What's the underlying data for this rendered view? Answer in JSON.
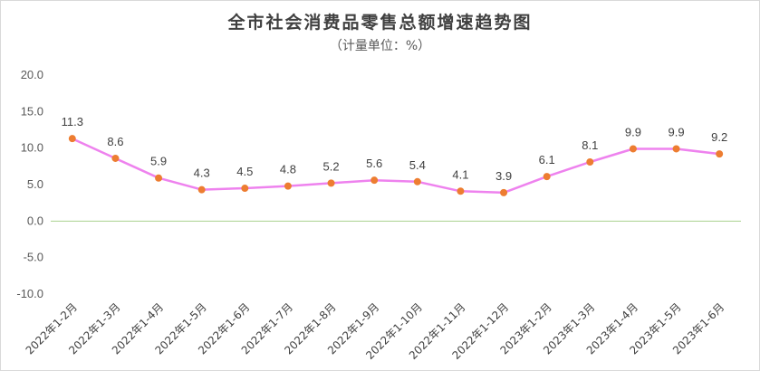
{
  "chart_data": {
    "type": "line",
    "title": "全市社会消费品零售总额增速趋势图",
    "subtitle": "（计量单位：%）",
    "categories": [
      "2022年1-2月",
      "2022年1-3月",
      "2022年1-4月",
      "2022年1-5月",
      "2022年1-6月",
      "2022年1-7月",
      "2022年1-8月",
      "2022年1-9月",
      "2022年1-10月",
      "2022年1-11月",
      "2022年1-12月",
      "2023年1-2月",
      "2023年1-3月",
      "2023年1-4月",
      "2023年1-5月",
      "2023年1-6月"
    ],
    "series": [
      {
        "values": [
          11.3,
          8.6,
          5.9,
          4.3,
          4.5,
          4.8,
          5.2,
          5.6,
          5.4,
          4.1,
          3.9,
          6.1,
          8.1,
          9.9,
          9.9,
          9.2
        ]
      }
    ],
    "data_labels": [
      "11.3",
      "8.6",
      "5.9",
      "4.3",
      "4.5",
      "4.8",
      "5.2",
      "5.6",
      "5.4",
      "4.1",
      "3.9",
      "6.1",
      "8.1",
      "9.9",
      "9.9",
      "9.2"
    ],
    "ylim": [
      -10,
      20
    ],
    "yticks": [
      20,
      15,
      10,
      5,
      0,
      -5,
      -10
    ],
    "ytick_labels": [
      "20.0",
      "15.0",
      "10.0",
      "5.0",
      "0.0",
      "-5.0",
      "-10.0"
    ],
    "grid": false,
    "legend": "none",
    "colors": {
      "line": "#ee82ee",
      "marker": "#ed7d31",
      "zero_line": "#a9d18e"
    }
  }
}
